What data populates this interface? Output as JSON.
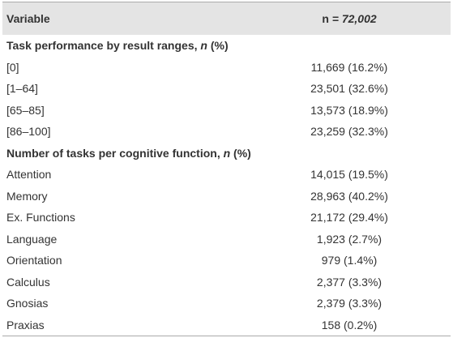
{
  "table": {
    "header": [
      "Variable",
      [
        "n",
        " = 72,002"
      ]
    ],
    "sections": [
      {
        "title": [
          "Task performance by result ranges, ",
          "n",
          " (%)"
        ],
        "rows": [
          [
            "[0]",
            "11,669 (16.2%)"
          ],
          [
            "[1–64]",
            "23,501 (32.6%)"
          ],
          [
            "[65–85]",
            "13,573 (18.9%)"
          ],
          [
            "[86–100]",
            "23,259 (32.3%)"
          ]
        ]
      },
      {
        "title": [
          "Number of tasks per cognitive function, ",
          "n",
          " (%)"
        ],
        "rows": [
          [
            "Attention",
            "14,015 (19.5%)"
          ],
          [
            "Memory",
            "28,963 (40.2%)"
          ],
          [
            "Ex. Functions",
            "21,172 (29.4%)"
          ],
          [
            "Language",
            "1,923 (2.7%)"
          ],
          [
            "Orientation",
            "979 (1.4%)"
          ],
          [
            "Calculus",
            "2,377 (3.3%)"
          ],
          [
            "Gnosias",
            "2,379 (3.3%)"
          ],
          [
            "Praxias",
            "158 (0.2%)"
          ]
        ]
      }
    ]
  }
}
